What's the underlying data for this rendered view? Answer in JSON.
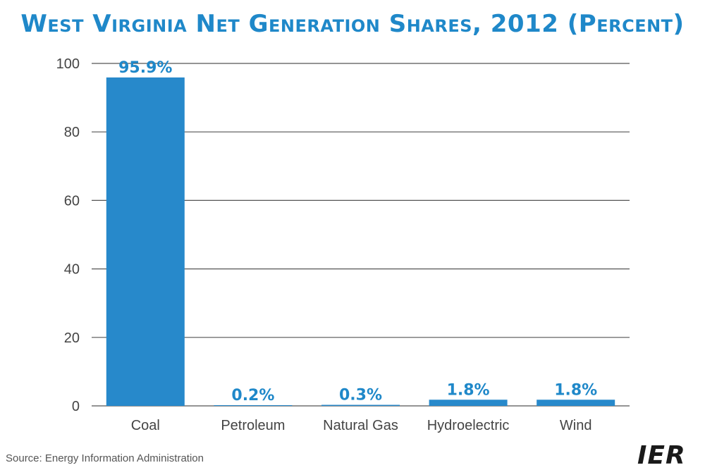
{
  "title": "West Virginia Net Generation Shares, 2012 (Percent)",
  "source": "Source: Energy Information Administration",
  "logo": "IER",
  "colors": {
    "bar": "#2789cb",
    "label": "#1f88c9",
    "grid": "#555555",
    "text": "#444444"
  },
  "chart_data": {
    "type": "bar",
    "title": "West Virginia Net Generation Shares, 2012 (Percent)",
    "categories": [
      "Coal",
      "Petroleum",
      "Natural Gas",
      "Hydroelectric",
      "Wind"
    ],
    "values": [
      95.9,
      0.2,
      0.3,
      1.8,
      1.8
    ],
    "data_labels": [
      "95.9%",
      "0.2%",
      "0.3%",
      "1.8%",
      "1.8%"
    ],
    "yticks": [
      "0",
      "20",
      "40",
      "60",
      "80",
      "100"
    ],
    "ylim": [
      0,
      100
    ],
    "xlabel": "",
    "ylabel": "",
    "grid": true
  }
}
